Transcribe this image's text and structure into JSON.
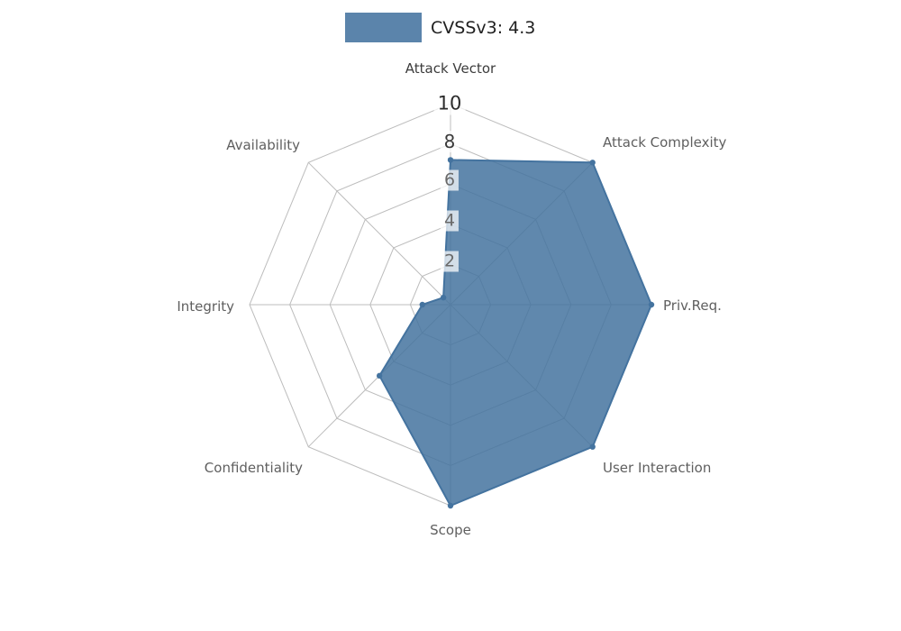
{
  "chart_data": {
    "type": "radar",
    "legend_label": "CVSSv3: 4.3",
    "legend_position": "top-center",
    "axes": [
      "Attack Vector",
      "Attack Complexity",
      "Priv.Req.",
      "User Interaction",
      "Scope",
      "Confidentiality",
      "Integrity",
      "Availability"
    ],
    "series": [
      {
        "name": "CVSSv3: 4.3",
        "values": [
          7.2,
          10,
          10,
          10,
          10,
          5,
          1.4,
          0.5
        ]
      }
    ],
    "ticks": [
      2,
      4,
      6,
      8,
      10
    ],
    "rlim": [
      0,
      10
    ],
    "grid": true,
    "series_color": "#44739f",
    "grid_color": "#bdbdbd"
  }
}
